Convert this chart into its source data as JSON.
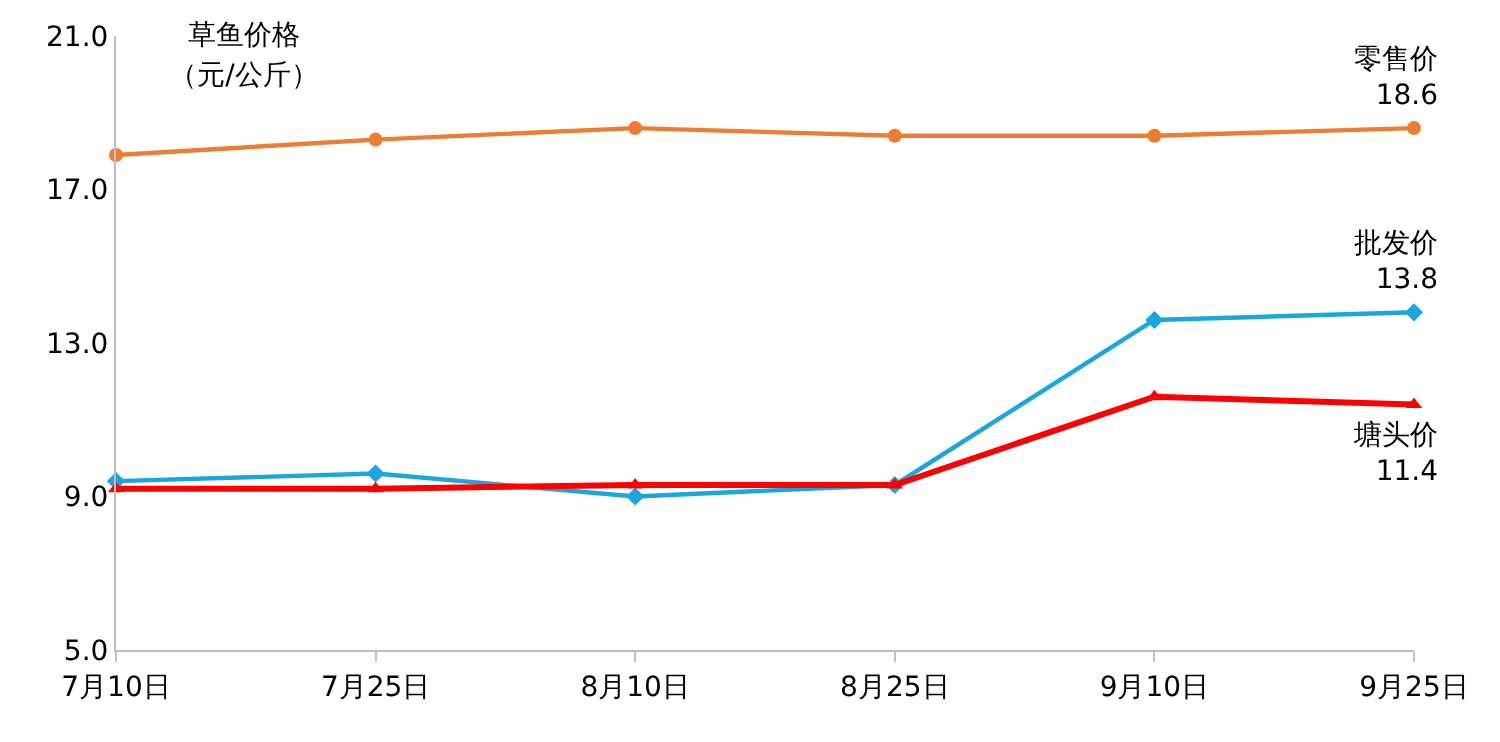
{
  "chart_data": {
    "type": "line",
    "title": "草鱼价格（元/公斤）",
    "categories": [
      "7月10日",
      "7月25日",
      "8月10日",
      "8月25日",
      "9月10日",
      "9月25日"
    ],
    "series": [
      {
        "name": "零售价",
        "color": "#ed7d31",
        "marker": "circle",
        "values": [
          17.9,
          18.3,
          18.6,
          18.4,
          18.4,
          18.6
        ],
        "value_labels": [
          null,
          null,
          null,
          null,
          null,
          "18.6"
        ]
      },
      {
        "name": "批发价",
        "color": "#1aa7e0",
        "marker": "diamond",
        "values": [
          9.4,
          9.6,
          9.0,
          9.3,
          13.6,
          13.8
        ],
        "value_labels": [
          null,
          null,
          null,
          null,
          null,
          "13.8"
        ]
      },
      {
        "name": "塘头价",
        "color": "#ff0000",
        "marker": "triangle",
        "values": [
          9.2,
          9.2,
          9.3,
          9.3,
          11.6,
          11.4
        ],
        "value_labels": [
          null,
          null,
          null,
          null,
          null,
          "11.4"
        ]
      }
    ],
    "ylim": [
      5,
      21
    ],
    "yticks": [
      {
        "value": 5,
        "label": "5.0"
      },
      {
        "value": 9,
        "label": "9.0"
      },
      {
        "value": 13,
        "label": "13.0"
      },
      {
        "value": 17,
        "label": "17.0"
      },
      {
        "value": 21,
        "label": "21.0"
      }
    ],
    "grid": false,
    "legend": false
  }
}
